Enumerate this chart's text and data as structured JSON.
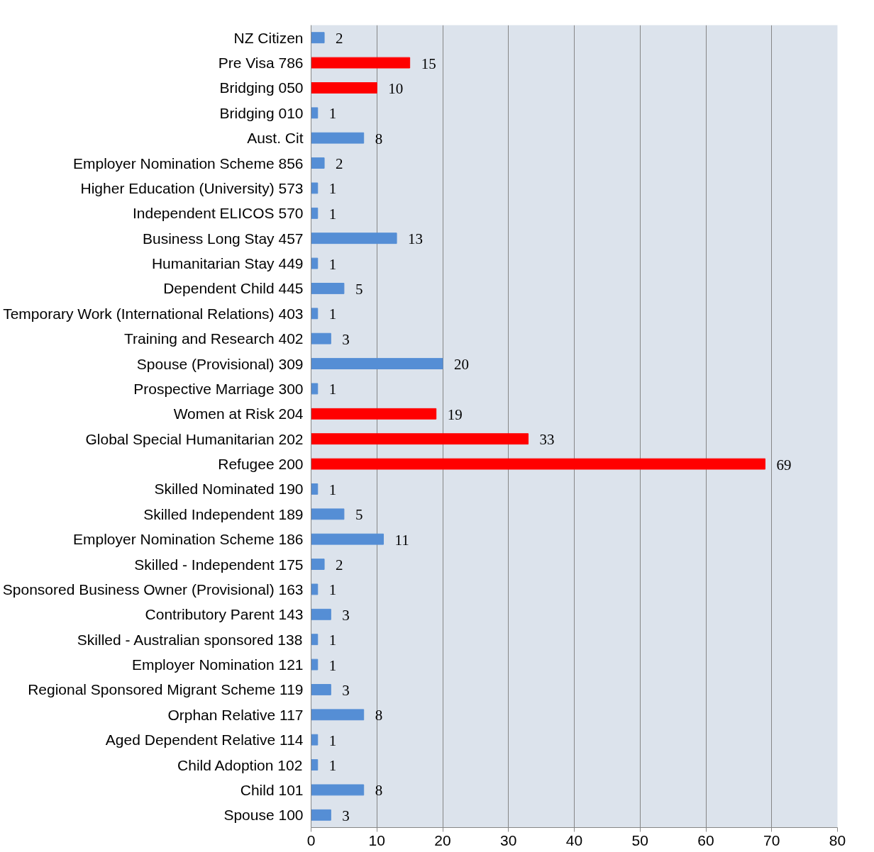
{
  "chart_data": {
    "type": "bar",
    "orientation": "horizontal",
    "categories": [
      "NZ Citizen",
      "Pre Visa 786",
      "Bridging 050",
      "Bridging 010",
      "Aust. Cit",
      "Employer Nomination Scheme 856",
      "Higher Education (University) 573",
      "Independent ELICOS 570",
      "Business Long Stay 457",
      "Humanitarian Stay 449",
      "Dependent Child 445",
      "Temporary Work (International Relations) 403",
      "Training and Research 402",
      "Spouse (Provisional) 309",
      "Prospective Marriage 300",
      "Women at Risk 204",
      "Global Special Humanitarian 202",
      "Refugee 200",
      "Skilled Nominated 190",
      "Skilled Independent 189",
      "Employer Nomination Scheme 186",
      "Skilled - Independent 175",
      "Sponsored Business Owner (Provisional) 163",
      "Contributory Parent 143",
      "Skilled - Australian sponsored 138",
      "Employer Nomination 121",
      "Regional Sponsored Migrant Scheme 119",
      "Orphan Relative 117",
      "Aged Dependent Relative 114",
      "Child Adoption 102",
      "Child 101",
      "Spouse 100"
    ],
    "values": [
      2,
      15,
      10,
      1,
      8,
      2,
      1,
      1,
      13,
      1,
      5,
      1,
      3,
      20,
      1,
      19,
      33,
      69,
      1,
      5,
      11,
      2,
      1,
      3,
      1,
      1,
      3,
      8,
      1,
      1,
      8,
      3
    ],
    "colors": [
      "#558ed5",
      "#ff0000",
      "#ff0000",
      "#558ed5",
      "#558ed5",
      "#558ed5",
      "#558ed5",
      "#558ed5",
      "#558ed5",
      "#558ed5",
      "#558ed5",
      "#558ed5",
      "#558ed5",
      "#558ed5",
      "#558ed5",
      "#ff0000",
      "#ff0000",
      "#ff0000",
      "#558ed5",
      "#558ed5",
      "#558ed5",
      "#558ed5",
      "#558ed5",
      "#558ed5",
      "#558ed5",
      "#558ed5",
      "#558ed5",
      "#558ed5",
      "#558ed5",
      "#558ed5",
      "#558ed5",
      "#558ed5"
    ],
    "xlim": [
      0,
      80
    ],
    "xticks": [
      0,
      10,
      20,
      30,
      40,
      50,
      60,
      70,
      80
    ],
    "grid": "x",
    "data_labels": true
  }
}
